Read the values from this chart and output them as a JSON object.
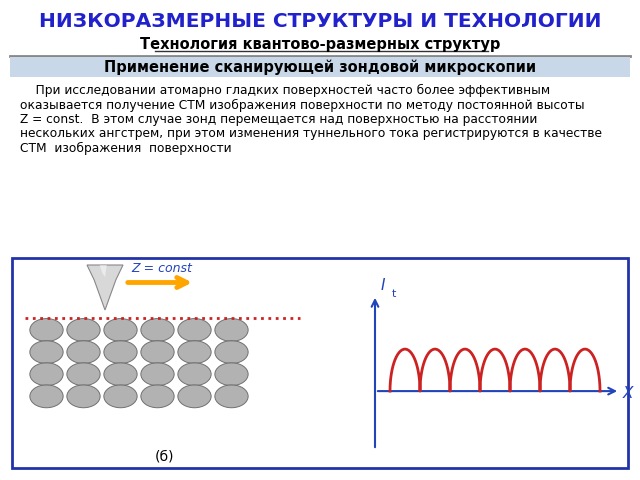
{
  "title": "НИЗКОРАЗМЕРНЫЕ СТРУКТУРЫ И ТЕХНОЛОГИИ",
  "subtitle": "Технология квантово-размерных структур",
  "section_header": "Применение сканирующей зондовой микроскопии",
  "title_color": "#2222CC",
  "subtitle_color": "#000000",
  "header_bg_color": "#C8D8E8",
  "header_text_color": "#000000",
  "diagram_border_color": "#2233AA",
  "diagram_bg_color": "#FFFFFF",
  "z_const_label": "Z = const",
  "z_const_color": "#2244BB",
  "it_label": "I",
  "it_sub": "t",
  "x_label": "X",
  "caption": "(б)",
  "axis_color": "#2244BB",
  "wave_color": "#CC2222",
  "dot_line_color": "#CC2222",
  "atom_color_face": "#AAAAAA",
  "atom_color_edge": "#666666",
  "arrow_color": "#FFA500",
  "separator_color": "#888888",
  "body_lines": [
    "    При исследовании атомарно гладких поверхностей часто более эффективным",
    "оказывается получение СТМ изображения поверхности по методу постоянной высоты",
    "Z = const.  В этом случае зонд перемещается над поверхностью на расстоянии",
    "нескольких ангстрем, при этом изменения туннельного тока регистрируются в качестве",
    "СТМ  изображения  поверхности"
  ]
}
